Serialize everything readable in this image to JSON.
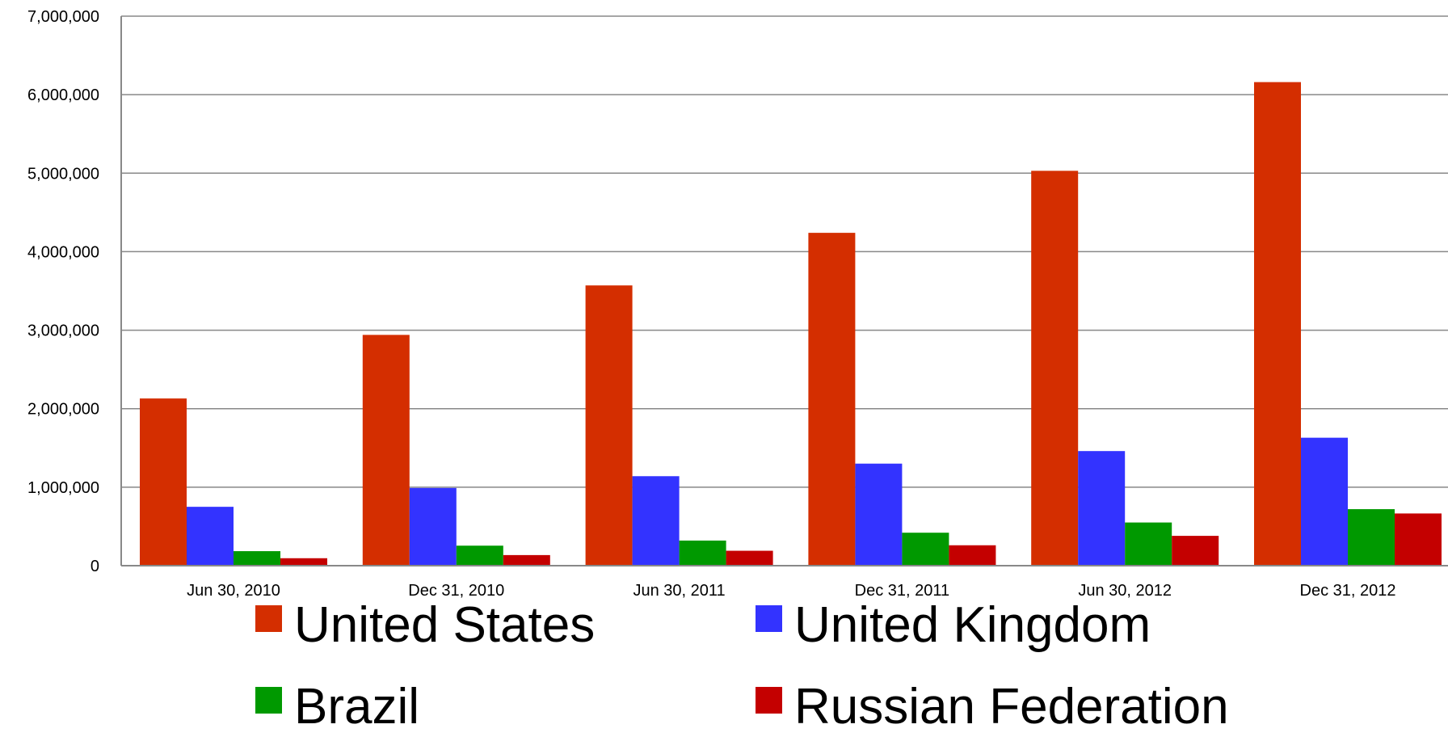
{
  "chart_data": {
    "type": "bar",
    "categories": [
      "Jun 30, 2010",
      "Dec 31, 2010",
      "Jun 30, 2011",
      "Dec 31, 2011",
      "Jun 30, 2012",
      "Dec 31, 2012"
    ],
    "series": [
      {
        "name": "United States",
        "color": "#d42e00",
        "values": [
          2130000,
          2940000,
          3570000,
          4240000,
          5030000,
          6160000
        ]
      },
      {
        "name": "United Kingdom",
        "color": "#3333ff",
        "values": [
          750000,
          990000,
          1140000,
          1300000,
          1460000,
          1630000
        ]
      },
      {
        "name": "Brazil",
        "color": "#009900",
        "values": [
          185000,
          255000,
          320000,
          420000,
          550000,
          720000
        ]
      },
      {
        "name": "Russian Federation",
        "color": "#c40000",
        "values": [
          95000,
          135000,
          190000,
          260000,
          380000,
          665000
        ]
      }
    ],
    "y_ticks": [
      "0",
      "1,000,000",
      "2,000,000",
      "3,000,000",
      "4,000,000",
      "5,000,000",
      "6,000,000",
      "7,000,000"
    ],
    "ylim": [
      0,
      7000000
    ],
    "grid": true,
    "legend_position": "bottom",
    "title": "",
    "xlabel": "",
    "ylabel": ""
  }
}
